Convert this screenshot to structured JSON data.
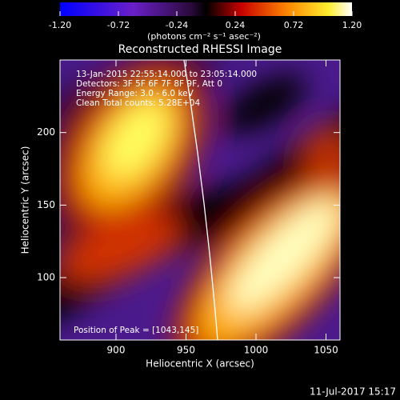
{
  "chart_data": {
    "type": "heatmap",
    "title": "Reconstructed RHESSI Image",
    "colorbar": {
      "label": "(photons cm⁻² s⁻¹ asec⁻²)",
      "lim": [
        -1.2,
        1.2
      ],
      "ticks": [
        {
          "value": -1.2,
          "label": "-1.20"
        },
        {
          "value": -0.72,
          "label": "-0.72"
        },
        {
          "value": -0.24,
          "label": "-0.24"
        },
        {
          "value": 0.24,
          "label": "0.24"
        },
        {
          "value": 0.72,
          "label": "0.72"
        },
        {
          "value": 1.2,
          "label": "1.20"
        }
      ]
    },
    "annotations": [
      "13-Jan-2015 22:55:14.000 to 23:05:14.000",
      "Detectors: 3F 5F 6F 7F 8F 9F, Att 0",
      "Energy Range: 3.0 - 6.0 keV",
      "Clean     Total counts: 5.28E+04"
    ],
    "peak_label": "Position of Peak = [1043,145]",
    "xlabel": "Heliocentric X (arcsec)",
    "ylabel": "Heliocentric Y (arcsec)",
    "xlim": [
      860,
      1060
    ],
    "xticks": [
      900,
      950,
      1000,
      1050
    ],
    "ylim": [
      57,
      250
    ],
    "yticks": [
      100,
      150,
      200
    ],
    "timestamp": "11-Jul-2017 15:17"
  }
}
